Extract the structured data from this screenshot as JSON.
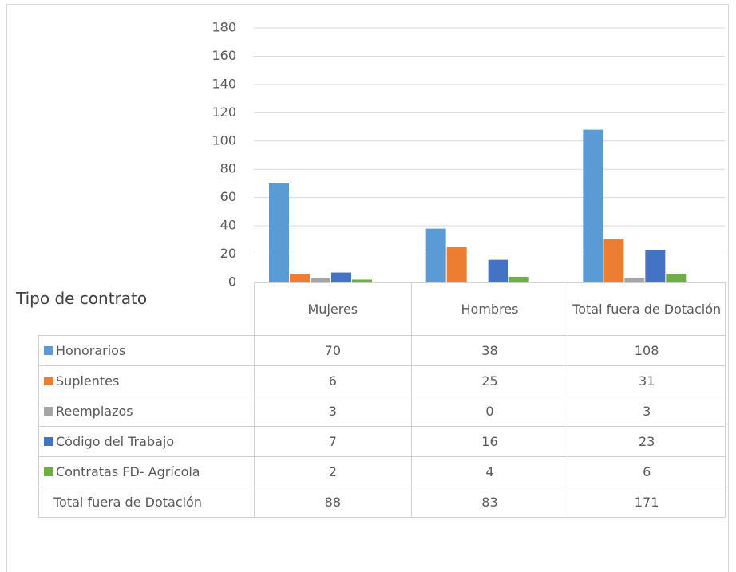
{
  "chart_data": {
    "type": "bar",
    "table_header": "Tipo de contrato",
    "categories": [
      "Mujeres",
      "Hombres",
      "Total fuera de Dotación"
    ],
    "series": [
      {
        "name": "Honorarios",
        "color": "#5b9bd5",
        "values": [
          70,
          38,
          108
        ]
      },
      {
        "name": "Suplentes",
        "color": "#ed7d31",
        "values": [
          6,
          25,
          31
        ]
      },
      {
        "name": "Reemplazos",
        "color": "#a5a5a5",
        "values": [
          3,
          0,
          3
        ]
      },
      {
        "name": "Código del Trabajo",
        "color": "#4472c4",
        "values": [
          7,
          16,
          23
        ]
      },
      {
        "name": "Contratas FD- Agrícola",
        "color": "#70ad47",
        "values": [
          2,
          4,
          6
        ]
      }
    ],
    "totals_row": {
      "name": "Total fuera de Dotación",
      "values": [
        88,
        83,
        171
      ]
    },
    "ylim": [
      0,
      180
    ],
    "yticks": [
      0,
      20,
      40,
      60,
      80,
      100,
      120,
      140,
      160,
      180
    ],
    "grid": true
  }
}
